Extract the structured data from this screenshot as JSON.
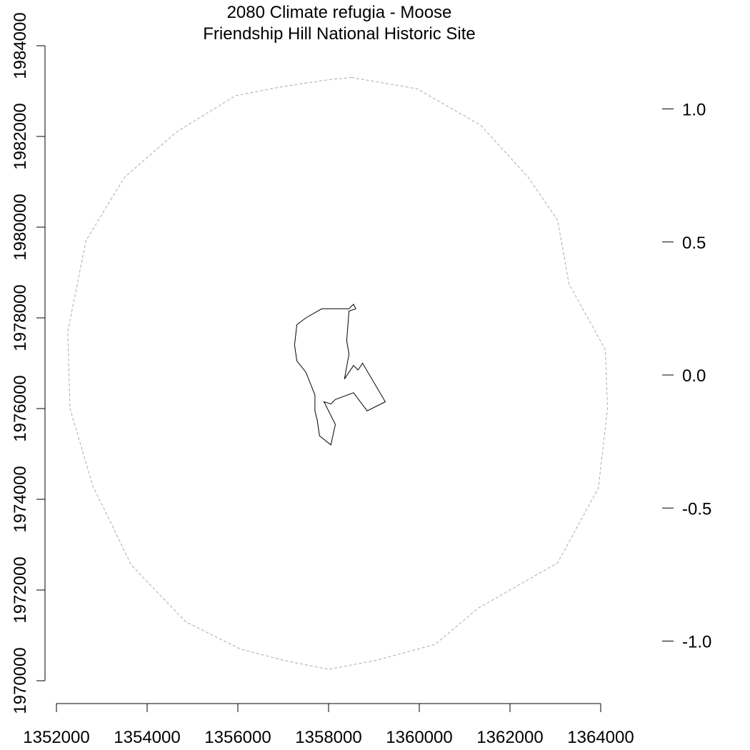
{
  "title": "2080 Climate refugia - Moose",
  "subtitle": "Friendship Hill National Historic Site",
  "x_axis": {
    "ticks": [
      1352000,
      1354000,
      1356000,
      1358000,
      1360000,
      1362000,
      1364000
    ],
    "tick_labels": [
      "1352000",
      "1354000",
      "1356000",
      "1358000",
      "1360000",
      "1362000",
      "1364000"
    ]
  },
  "y_axis": {
    "ticks": [
      1970000,
      1972000,
      1974000,
      1976000,
      1978000,
      1980000,
      1982000,
      1984000
    ],
    "tick_labels": [
      "1970000",
      "1972000",
      "1974000",
      "1976000",
      "1978000",
      "1980000",
      "1982000",
      "1984000"
    ]
  },
  "legend_axis": {
    "ticks": [
      1.0,
      0.5,
      0.0,
      -0.5,
      -1.0
    ],
    "tick_labels": [
      "1.0",
      "0.5",
      "0.0",
      "-0.5",
      "-1.0"
    ]
  },
  "colors": {
    "boundary": "#000000",
    "buffer": "#aaaaaa",
    "axis": "#000000"
  },
  "map_data": {
    "park_boundary": [
      [
        1358450,
        1978200
      ],
      [
        1358550,
        1978300
      ],
      [
        1358600,
        1978200
      ],
      [
        1358450,
        1978150
      ],
      [
        1358400,
        1977500
      ],
      [
        1358450,
        1977200
      ],
      [
        1358350,
        1976650
      ],
      [
        1358550,
        1976950
      ],
      [
        1358650,
        1976850
      ],
      [
        1358750,
        1977000
      ],
      [
        1359250,
        1976150
      ],
      [
        1358850,
        1975950
      ],
      [
        1358550,
        1976350
      ],
      [
        1358150,
        1976200
      ],
      [
        1358050,
        1976100
      ],
      [
        1357900,
        1976150
      ],
      [
        1358150,
        1975650
      ],
      [
        1358050,
        1975200
      ],
      [
        1357800,
        1975400
      ],
      [
        1357750,
        1975750
      ],
      [
        1357700,
        1975950
      ],
      [
        1357700,
        1976300
      ],
      [
        1357500,
        1976800
      ],
      [
        1357300,
        1977050
      ],
      [
        1357250,
        1977400
      ],
      [
        1357300,
        1977850
      ],
      [
        1357500,
        1978000
      ],
      [
        1357850,
        1978200
      ]
    ],
    "buffer": [
      [
        1358500,
        1983300
      ],
      [
        1359950,
        1983050
      ],
      [
        1361350,
        1982250
      ],
      [
        1362400,
        1981100
      ],
      [
        1363050,
        1980150
      ],
      [
        1363300,
        1978750
      ],
      [
        1364100,
        1977300
      ],
      [
        1364150,
        1976000
      ],
      [
        1363950,
        1974250
      ],
      [
        1363050,
        1972600
      ],
      [
        1361300,
        1971600
      ],
      [
        1360350,
        1970800
      ],
      [
        1359050,
        1970450
      ],
      [
        1358000,
        1970250
      ],
      [
        1357000,
        1970450
      ],
      [
        1356050,
        1970700
      ],
      [
        1354850,
        1971300
      ],
      [
        1353650,
        1972550
      ],
      [
        1352800,
        1974300
      ],
      [
        1352300,
        1976000
      ],
      [
        1352250,
        1977700
      ],
      [
        1352650,
        1979700
      ],
      [
        1353500,
        1981100
      ],
      [
        1354650,
        1982100
      ],
      [
        1355950,
        1982900
      ],
      [
        1357000,
        1983100
      ],
      [
        1358000,
        1983250
      ]
    ]
  }
}
